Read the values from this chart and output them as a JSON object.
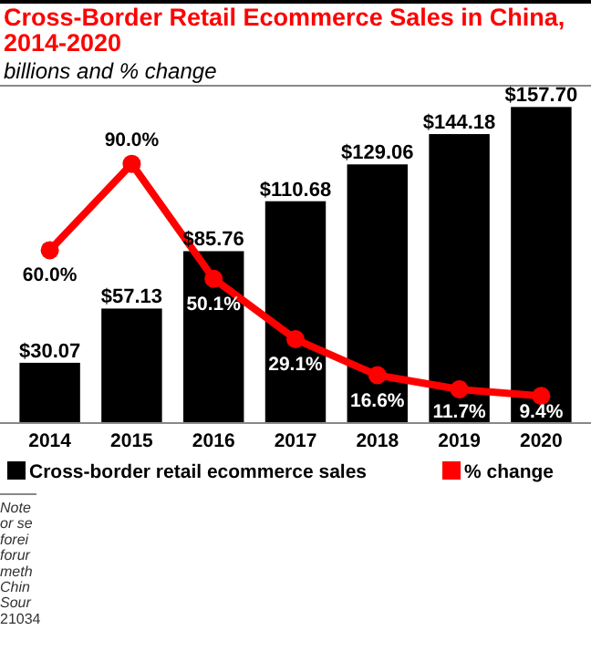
{
  "chart_data": {
    "type": "bar",
    "title": "Cross-Border Retail Ecommerce Sales in China, 2014-2020",
    "subtitle": "billions and % change",
    "categories": [
      "2014",
      "2015",
      "2016",
      "2017",
      "2018",
      "2019",
      "2020"
    ],
    "series": [
      {
        "name": "Cross-border retail ecommerce sales",
        "color": "#000000",
        "values": [
          30.07,
          57.13,
          85.76,
          110.68,
          129.06,
          144.18,
          157.7
        ],
        "value_labels": [
          "$30.07",
          "$57.13",
          "$85.76",
          "$110.68",
          "$129.06",
          "$144.18",
          "$157.70"
        ]
      },
      {
        "name": "% change",
        "type": "line",
        "axis": "y2",
        "color": "#ff0000",
        "values": [
          60.0,
          90.0,
          50.1,
          29.1,
          16.6,
          11.7,
          9.4
        ],
        "value_labels": [
          "60.0%",
          "90.0%",
          "50.1%",
          "29.1%",
          "16.6%",
          "11.7%",
          "9.4%"
        ]
      }
    ],
    "tick_labels": "x",
    "marker": "circle",
    "legend": "bottom",
    "annotations": [
      "Note",
      "or se",
      "forei",
      "forur",
      "meth",
      "Chin",
      "Sour",
      "21034"
    ]
  }
}
